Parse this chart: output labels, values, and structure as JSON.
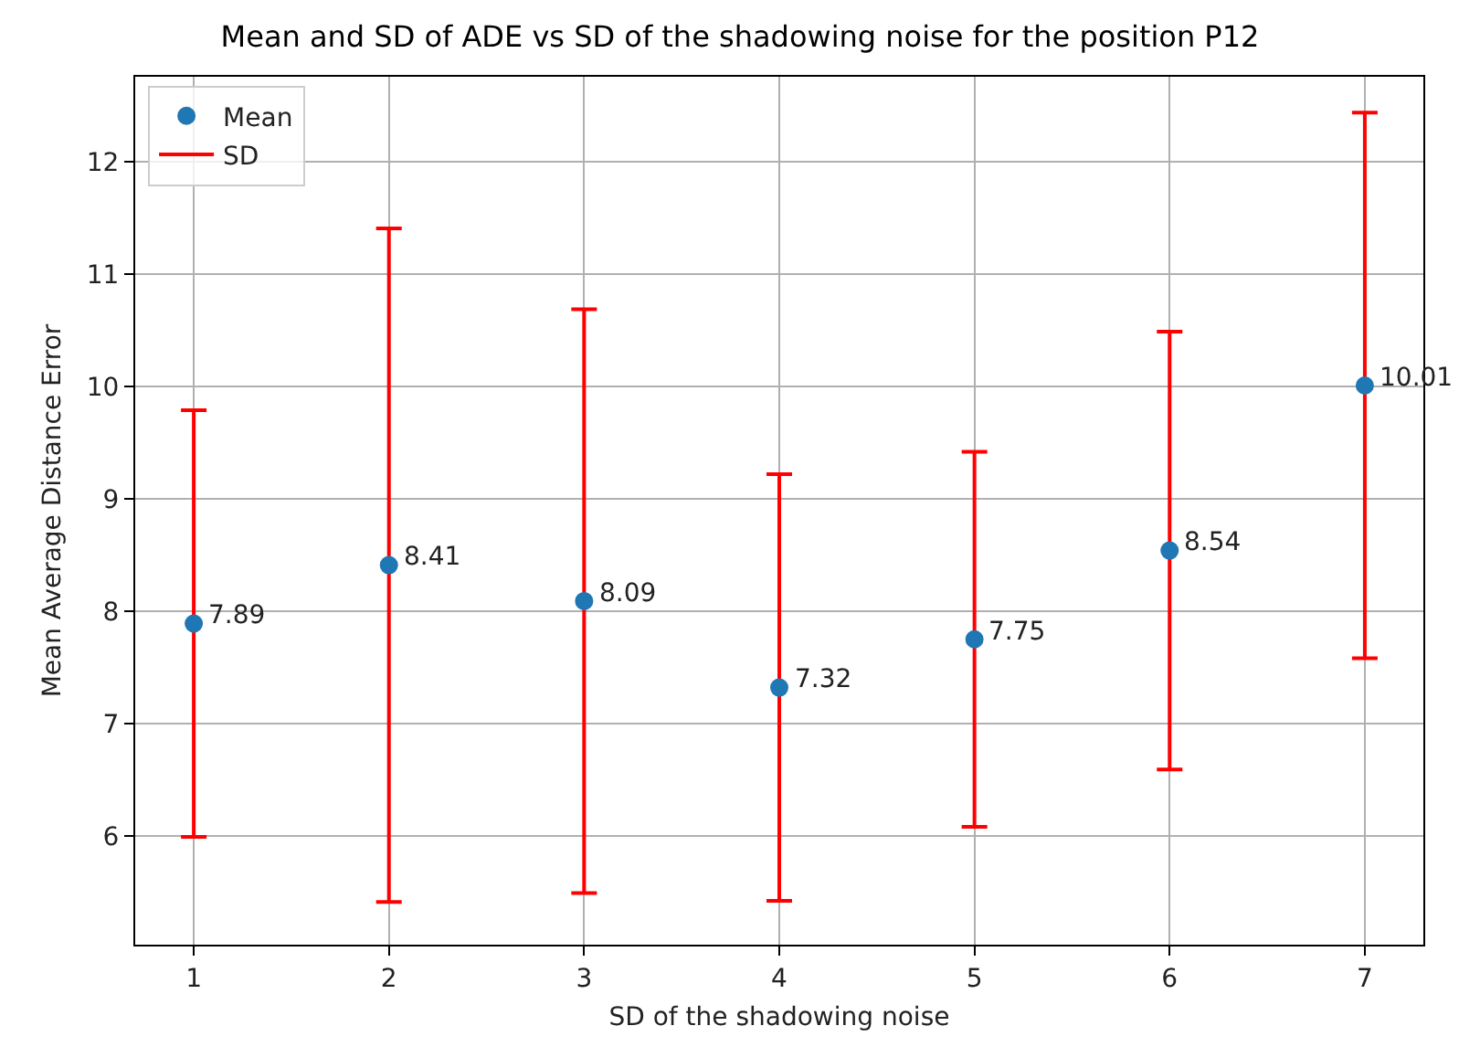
{
  "chart_data": {
    "type": "scatter",
    "title": "Mean and SD of ADE vs SD of the shadowing noise for the position P12",
    "xlabel": "SD of the shadowing noise",
    "ylabel": "Mean Average Distance Error",
    "x": [
      1,
      2,
      3,
      4,
      5,
      6,
      7
    ],
    "series": [
      {
        "name": "Mean",
        "color": "#1f77b4",
        "marker": "circle",
        "values": [
          7.89,
          8.41,
          8.09,
          7.32,
          7.75,
          8.54,
          10.01
        ],
        "errors": [
          1.9,
          3.0,
          2.6,
          1.9,
          1.67,
          1.95,
          2.43
        ]
      }
    ],
    "annotations": [
      "SD"
    ],
    "data_labels": true,
    "xlim": [
      0.7,
      7.3
    ],
    "xticks": [
      1,
      2,
      3,
      4,
      5,
      6,
      7
    ],
    "ylim": [
      5.03,
      12.76
    ],
    "yticks": [
      6,
      7,
      8,
      9,
      10,
      11,
      12
    ],
    "grid": true,
    "legend": "top left"
  }
}
